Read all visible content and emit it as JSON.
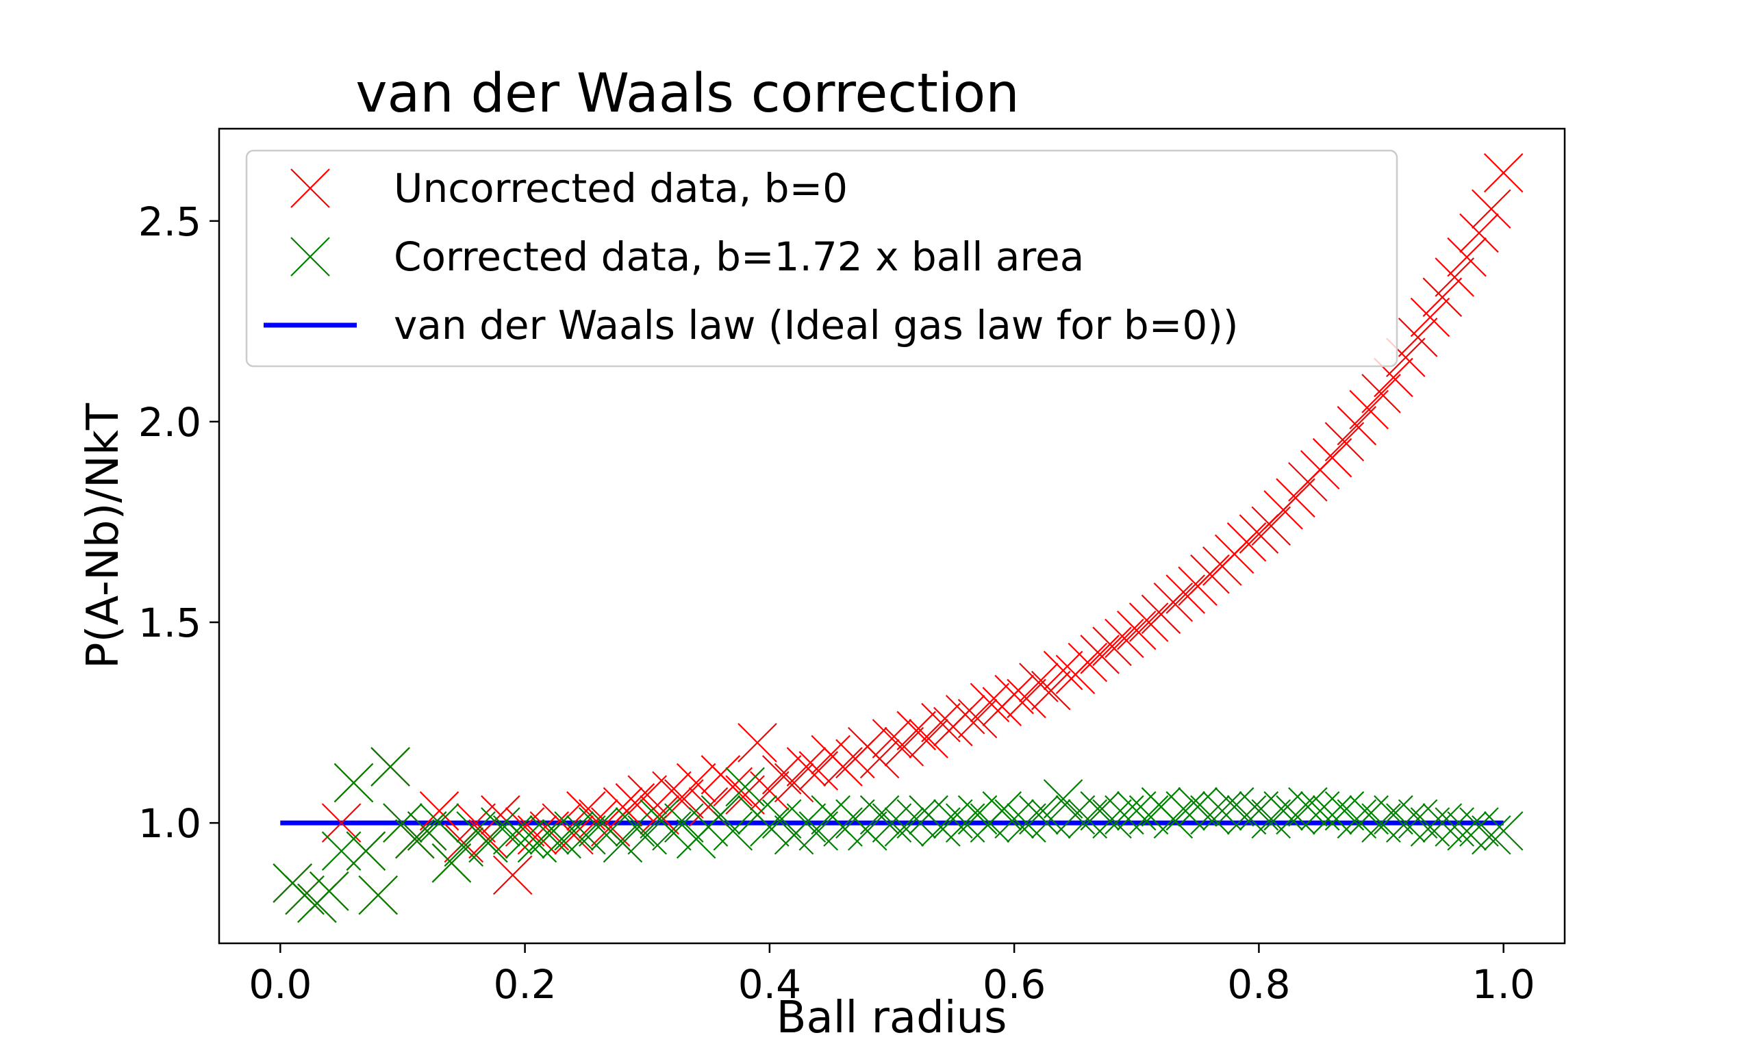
{
  "chart_data": {
    "type": "scatter",
    "title": "van der Waals correction",
    "xlabel": "Ball radius",
    "ylabel": "P(A-Nb)/NkT",
    "xlim": [
      -0.05,
      1.05
    ],
    "ylim": [
      0.7,
      2.73
    ],
    "xticks": [
      "0.0",
      "0.2",
      "0.4",
      "0.6",
      "0.8",
      "1.0"
    ],
    "xtick_values": [
      0.0,
      0.2,
      0.4,
      0.6,
      0.8,
      1.0
    ],
    "yticks": [
      "1.0",
      "1.5",
      "2.0",
      "2.5"
    ],
    "ytick_values": [
      1.0,
      1.5,
      2.0,
      2.5
    ],
    "grid": false,
    "legend_position": "top-left",
    "series": [
      {
        "name": "Uncorrected data, b=0",
        "marker": "x",
        "color": "#ff0000",
        "points": [
          [
            0.01,
            0.85
          ],
          [
            0.02,
            0.82
          ],
          [
            0.03,
            0.8
          ],
          [
            0.04,
            0.83
          ],
          [
            0.05,
            1.0
          ],
          [
            0.06,
            1.1
          ],
          [
            0.07,
            0.93
          ],
          [
            0.08,
            0.82
          ],
          [
            0.09,
            1.14
          ],
          [
            0.1,
            1.0
          ],
          [
            0.11,
            0.96
          ],
          [
            0.12,
            0.98
          ],
          [
            0.13,
            1.03
          ],
          [
            0.14,
            0.9
          ],
          [
            0.15,
            0.95
          ],
          [
            0.16,
            1.0
          ],
          [
            0.17,
            0.96
          ],
          [
            0.18,
            1.02
          ],
          [
            0.19,
            0.87
          ],
          [
            0.2,
            0.99
          ],
          [
            0.21,
            0.97
          ],
          [
            0.22,
            0.98
          ],
          [
            0.23,
            1.0
          ],
          [
            0.24,
            0.97
          ],
          [
            0.25,
            1.03
          ],
          [
            0.26,
            1.01
          ],
          [
            0.27,
            0.99
          ],
          [
            0.28,
            1.04
          ],
          [
            0.29,
            1.05
          ],
          [
            0.3,
            1.07
          ],
          [
            0.31,
            1.02
          ],
          [
            0.32,
            1.08
          ],
          [
            0.33,
            1.06
          ],
          [
            0.34,
            1.1
          ],
          [
            0.35,
            1.04
          ],
          [
            0.36,
            1.12
          ],
          [
            0.37,
            1.09
          ],
          [
            0.38,
            1.07
          ],
          [
            0.39,
            1.2
          ],
          [
            0.4,
            1.08
          ],
          [
            0.41,
            1.12
          ],
          [
            0.42,
            1.1
          ],
          [
            0.43,
            1.14
          ],
          [
            0.44,
            1.13
          ],
          [
            0.45,
            1.17
          ],
          [
            0.46,
            1.14
          ],
          [
            0.47,
            1.16
          ],
          [
            0.48,
            1.19
          ],
          [
            0.49,
            1.16
          ],
          [
            0.5,
            1.21
          ],
          [
            0.51,
            1.19
          ],
          [
            0.52,
            1.23
          ],
          [
            0.53,
            1.21
          ],
          [
            0.54,
            1.25
          ],
          [
            0.55,
            1.24
          ],
          [
            0.56,
            1.27
          ],
          [
            0.57,
            1.26
          ],
          [
            0.58,
            1.3
          ],
          [
            0.59,
            1.29
          ],
          [
            0.6,
            1.32
          ],
          [
            0.61,
            1.31
          ],
          [
            0.62,
            1.35
          ],
          [
            0.63,
            1.33
          ],
          [
            0.64,
            1.38
          ],
          [
            0.65,
            1.37
          ],
          [
            0.66,
            1.4
          ],
          [
            0.67,
            1.42
          ],
          [
            0.68,
            1.44
          ],
          [
            0.69,
            1.46
          ],
          [
            0.7,
            1.48
          ],
          [
            0.71,
            1.5
          ],
          [
            0.72,
            1.52
          ],
          [
            0.73,
            1.55
          ],
          [
            0.74,
            1.57
          ],
          [
            0.75,
            1.59
          ],
          [
            0.76,
            1.62
          ],
          [
            0.77,
            1.64
          ],
          [
            0.78,
            1.67
          ],
          [
            0.79,
            1.7
          ],
          [
            0.8,
            1.72
          ],
          [
            0.81,
            1.74
          ],
          [
            0.82,
            1.78
          ],
          [
            0.83,
            1.81
          ],
          [
            0.84,
            1.85
          ],
          [
            0.85,
            1.88
          ],
          [
            0.86,
            1.91
          ],
          [
            0.87,
            1.95
          ],
          [
            0.88,
            1.99
          ],
          [
            0.89,
            2.03
          ],
          [
            0.9,
            2.07
          ],
          [
            0.91,
            2.11
          ],
          [
            0.92,
            2.16
          ],
          [
            0.93,
            2.21
          ],
          [
            0.94,
            2.26
          ],
          [
            0.95,
            2.31
          ],
          [
            0.96,
            2.36
          ],
          [
            0.97,
            2.41
          ],
          [
            0.98,
            2.47
          ],
          [
            0.99,
            2.53
          ],
          [
            1.0,
            2.62
          ]
        ]
      },
      {
        "name": "Corrected data, b=1.72 x ball area",
        "marker": "x",
        "color": "#008000",
        "points": [
          [
            0.01,
            0.85
          ],
          [
            0.02,
            0.82
          ],
          [
            0.03,
            0.8
          ],
          [
            0.04,
            0.83
          ],
          [
            0.05,
            0.93
          ],
          [
            0.06,
            1.1
          ],
          [
            0.07,
            0.93
          ],
          [
            0.08,
            0.82
          ],
          [
            0.09,
            1.14
          ],
          [
            0.1,
            1.0
          ],
          [
            0.11,
            0.96
          ],
          [
            0.12,
            0.98
          ],
          [
            0.13,
            1.0
          ],
          [
            0.14,
            0.9
          ],
          [
            0.15,
            0.94
          ],
          [
            0.16,
            0.98
          ],
          [
            0.17,
            0.95
          ],
          [
            0.18,
            0.99
          ],
          [
            0.19,
            0.97
          ],
          [
            0.2,
            0.96
          ],
          [
            0.21,
            0.95
          ],
          [
            0.22,
            0.97
          ],
          [
            0.23,
            0.96
          ],
          [
            0.24,
            0.98
          ],
          [
            0.25,
            0.97
          ],
          [
            0.26,
            0.99
          ],
          [
            0.27,
            0.98
          ],
          [
            0.28,
            0.95
          ],
          [
            0.29,
            0.99
          ],
          [
            0.3,
            0.97
          ],
          [
            0.31,
            1.01
          ],
          [
            0.32,
            0.98
          ],
          [
            0.33,
            1.0
          ],
          [
            0.34,
            0.96
          ],
          [
            0.35,
            0.99
          ],
          [
            0.36,
            1.02
          ],
          [
            0.37,
            0.98
          ],
          [
            0.38,
            1.09
          ],
          [
            0.39,
            1.02
          ],
          [
            0.4,
            0.99
          ],
          [
            0.41,
            1.01
          ],
          [
            0.42,
            0.97
          ],
          [
            0.43,
            1.0
          ],
          [
            0.44,
            0.98
          ],
          [
            0.45,
            1.02
          ],
          [
            0.46,
            0.99
          ],
          [
            0.47,
            1.01
          ],
          [
            0.48,
            0.98
          ],
          [
            0.49,
            1.02
          ],
          [
            0.5,
            1.0
          ],
          [
            0.51,
            0.99
          ],
          [
            0.52,
            1.01
          ],
          [
            0.53,
            1.02
          ],
          [
            0.54,
            0.99
          ],
          [
            0.55,
            1.01
          ],
          [
            0.56,
            1.0
          ],
          [
            0.57,
            1.02
          ],
          [
            0.58,
            1.0
          ],
          [
            0.59,
            1.03
          ],
          [
            0.6,
            1.01
          ],
          [
            0.61,
            1.0
          ],
          [
            0.62,
            1.02
          ],
          [
            0.63,
            1.01
          ],
          [
            0.64,
            1.06
          ],
          [
            0.65,
            1.02
          ],
          [
            0.66,
            1.01
          ],
          [
            0.67,
            1.03
          ],
          [
            0.68,
            1.01
          ],
          [
            0.69,
            1.02
          ],
          [
            0.7,
            1.03
          ],
          [
            0.71,
            1.02
          ],
          [
            0.72,
            1.04
          ],
          [
            0.73,
            1.01
          ],
          [
            0.74,
            1.03
          ],
          [
            0.75,
            1.04
          ],
          [
            0.76,
            1.02
          ],
          [
            0.77,
            1.03
          ],
          [
            0.78,
            1.04
          ],
          [
            0.79,
            1.02
          ],
          [
            0.8,
            1.03
          ],
          [
            0.81,
            1.01
          ],
          [
            0.82,
            1.03
          ],
          [
            0.83,
            1.02
          ],
          [
            0.84,
            1.04
          ],
          [
            0.85,
            1.03
          ],
          [
            0.86,
            1.02
          ],
          [
            0.87,
            1.03
          ],
          [
            0.88,
            1.01
          ],
          [
            0.89,
            1.02
          ],
          [
            0.9,
            1.0
          ],
          [
            0.91,
            1.02
          ],
          [
            0.92,
            1.0
          ],
          [
            0.93,
            1.01
          ],
          [
            0.94,
            0.99
          ],
          [
            0.95,
            1.0
          ],
          [
            0.96,
            0.99
          ],
          [
            0.97,
            0.98
          ],
          [
            0.98,
            0.99
          ],
          [
            0.99,
            0.97
          ],
          [
            1.0,
            0.98
          ]
        ]
      },
      {
        "name": "van der Waals law (Ideal gas law for b=0))",
        "marker": "line",
        "color": "#0000ff",
        "points": [
          [
            0.0,
            1.0
          ],
          [
            1.0,
            1.0
          ]
        ]
      }
    ]
  }
}
